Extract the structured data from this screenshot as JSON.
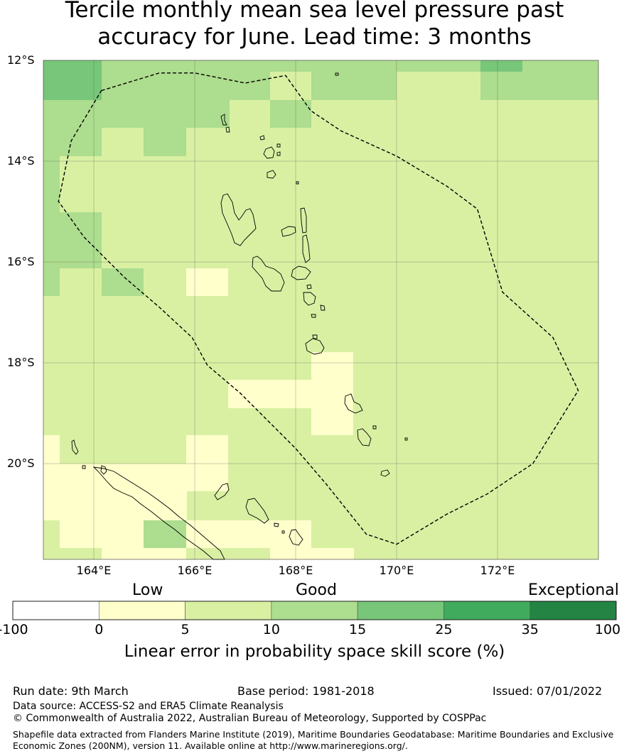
{
  "title_line1": "Tercile monthly mean sea level pressure past",
  "title_line2": "accuracy for June. Lead time: 3 months",
  "map": {
    "lat_labels": [
      {
        "label": "12°S",
        "lat": -12
      },
      {
        "label": "14°S",
        "lat": -14
      },
      {
        "label": "16°S",
        "lat": -16
      },
      {
        "label": "18°S",
        "lat": -18
      },
      {
        "label": "20°S",
        "lat": -20
      }
    ],
    "lon_labels": [
      {
        "label": "164°E",
        "lon": 164
      },
      {
        "label": "166°E",
        "lon": 166
      },
      {
        "label": "168°E",
        "lon": 168
      },
      {
        "label": "170°E",
        "lon": 170
      },
      {
        "label": "172°E",
        "lon": 172
      }
    ],
    "extent": {
      "lon_min": 163.0,
      "lon_max": 174.0,
      "lat_max": -12.0,
      "lat_min": -21.9
    },
    "grid_on": true,
    "eez_boundary_lonlat": [
      [
        164.15,
        -12.6
      ],
      [
        165.3,
        -12.25
      ],
      [
        166.0,
        -12.25
      ],
      [
        167.0,
        -12.45
      ],
      [
        167.8,
        -12.3
      ],
      [
        168.3,
        -13.0
      ],
      [
        168.9,
        -13.4
      ],
      [
        170.0,
        -13.9
      ],
      [
        171.0,
        -14.5
      ],
      [
        171.6,
        -14.95
      ],
      [
        172.1,
        -16.6
      ],
      [
        173.1,
        -17.5
      ],
      [
        173.6,
        -18.55
      ],
      [
        172.7,
        -20.0
      ],
      [
        171.8,
        -20.6
      ],
      [
        171.0,
        -21.0
      ],
      [
        170.0,
        -21.6
      ],
      [
        169.4,
        -21.4
      ],
      [
        168.6,
        -20.4
      ],
      [
        168.0,
        -19.7
      ],
      [
        167.5,
        -19.2
      ],
      [
        166.9,
        -18.6
      ],
      [
        166.25,
        -18.05
      ],
      [
        165.95,
        -17.5
      ],
      [
        165.3,
        -16.9
      ],
      [
        164.6,
        -16.3
      ],
      [
        163.8,
        -15.5
      ],
      [
        163.3,
        -14.8
      ],
      [
        163.55,
        -13.6
      ],
      [
        164.15,
        -12.6
      ]
    ],
    "category_colors": {
      "cat0_5": "#ffffcc",
      "cat5_10": "#d9f0a3",
      "cat10_15": "#addd8e",
      "cat15_25": "#78c679",
      "cat25_35": "#41ab5d",
      "cat35_100": "#238443"
    }
  },
  "colorbar": {
    "category_labels": {
      "low": "Low",
      "good": "Good",
      "exceptional": "Exceptional"
    },
    "ticks": [
      "-100",
      "0",
      "5",
      "10",
      "15",
      "25",
      "35",
      "100"
    ],
    "segment_colors": [
      "#ffffff",
      "#ffffcc",
      "#d9f0a3",
      "#addd8e",
      "#78c679",
      "#41ab5d",
      "#238443"
    ],
    "title": "Linear error in probability space skill score (%)"
  },
  "footer": {
    "run_date": "Run date: 9th March",
    "base_period": "Base period: 1981-2018",
    "issued": "Issued: 07/01/2022",
    "data_source": "Data source: ACCESS-S2 and ERA5 Climate Reanalysis",
    "copyright": "© Commonwealth of Australia 2022, Australian Bureau of Meteorology, Supported by COSPPac",
    "shapefile_line1": "Shapefile data extracted from Flanders Marine Institute (2019), Maritime Boundaries Geodatabase: Maritime Boundaries and Exclusive",
    "shapefile_line2": "Economic Zones (200NM), version 11. Available online at http://www.marineregions.org/."
  }
}
